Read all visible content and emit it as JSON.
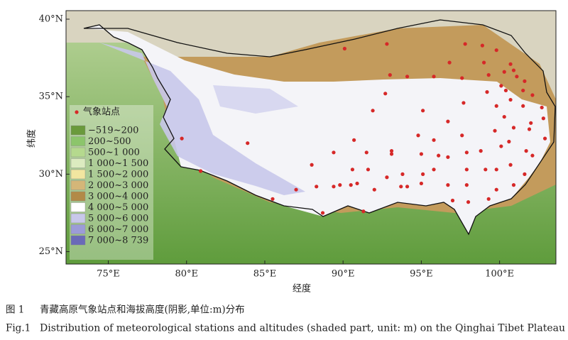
{
  "map": {
    "xlim": [
      72.3,
      103.6
    ],
    "ylim": [
      24.2,
      40.55
    ],
    "xticks": [
      {
        "value": 75,
        "label": "75°E"
      },
      {
        "value": 80,
        "label": "80°E"
      },
      {
        "value": 85,
        "label": "85°E"
      },
      {
        "value": 90,
        "label": "90°E"
      },
      {
        "value": 95,
        "label": "95°E"
      },
      {
        "value": 100,
        "label": "100°E"
      }
    ],
    "yticks": [
      {
        "value": 25,
        "label": "25°N"
      },
      {
        "value": 30,
        "label": "30°N"
      },
      {
        "value": 35,
        "label": "35°N"
      },
      {
        "value": 40,
        "label": "40°N"
      }
    ],
    "xlabel": "经度",
    "ylabel": "纬度",
    "legend": {
      "title": "气象站点",
      "marker_color": "#d62828",
      "items": [
        {
          "label": "−519~200",
          "color": "#6a9a3c"
        },
        {
          "label": "200~500",
          "color": "#8cc56b"
        },
        {
          "label": "500~1 000",
          "color": "#b5d98e"
        },
        {
          "label": "1 000~1 500",
          "color": "#dcebc0"
        },
        {
          "label": "1 500~2 000",
          "color": "#f2e6a0"
        },
        {
          "label": "2 000~3 000",
          "color": "#d4b678"
        },
        {
          "label": "3 000~4 000",
          "color": "#b28a48"
        },
        {
          "label": "4 000~5 000",
          "color": "#ffffff"
        },
        {
          "label": "5 000~6 000",
          "color": "#c8c8ea"
        },
        {
          "label": "6 000~7 000",
          "color": "#9c9cd8"
        },
        {
          "label": "7 000~8 739",
          "color": "#6a6ab8"
        }
      ]
    },
    "stations": {
      "lon": [
        92.8,
        90.1,
        97.8,
        98.9,
        99.8,
        96.8,
        99.0,
        100.7,
        93.0,
        94.1,
        95.8,
        97.6,
        99.3,
        100.3,
        100.9,
        101.1,
        101.6,
        100.1,
        100.4,
        99.2,
        101.5,
        102.1,
        92.7,
        91.9,
        95.1,
        97.7,
        99.8,
        100.7,
        101.5,
        102.7,
        100.3,
        102.0,
        96.7,
        95.8,
        97.6,
        99.7,
        100.9,
        102.9,
        94.8,
        90.7,
        93.1,
        93.1,
        95.0,
        96.1,
        96.7,
        97.9,
        98.8,
        100.1,
        100.6,
        101.7,
        102.1,
        79.7,
        83.9,
        89.4,
        91.5,
        88.0,
        90.6,
        91.6,
        92.8,
        93.8,
        95.1,
        95.8,
        97.9,
        99.1,
        99.8,
        100.7,
        101.6,
        87.0,
        88.3,
        89.4,
        89.8,
        90.5,
        90.9,
        92.0,
        93.7,
        95.0,
        96.7,
        97.9,
        99.8,
        100.9,
        88.7,
        97.0,
        98.0,
        99.3,
        80.9,
        85.5,
        91.3,
        94.1,
        101.9,
        102.8
      ],
      "lat": [
        38.4,
        38.1,
        38.4,
        38.3,
        38.0,
        37.2,
        37.2,
        37.1,
        36.4,
        36.3,
        36.3,
        36.2,
        36.4,
        36.6,
        36.7,
        36.3,
        36.0,
        35.7,
        35.4,
        35.3,
        35.4,
        35.1,
        35.2,
        34.1,
        34.1,
        34.6,
        34.4,
        34.8,
        34.4,
        34.3,
        33.7,
        33.3,
        33.4,
        32.2,
        32.5,
        32.8,
        33.0,
        32.3,
        32.5,
        32.2,
        31.5,
        31.3,
        31.3,
        31.2,
        31.1,
        31.4,
        31.5,
        31.8,
        32.1,
        31.5,
        31.2,
        32.3,
        32.0,
        31.4,
        31.4,
        30.6,
        30.3,
        30.3,
        29.8,
        30.0,
        30.0,
        30.3,
        30.3,
        30.3,
        30.3,
        30.6,
        30.0,
        29.0,
        29.2,
        29.2,
        29.3,
        29.3,
        29.4,
        29.0,
        29.2,
        29.4,
        29.3,
        29.3,
        29.0,
        29.3,
        27.5,
        28.3,
        28.2,
        28.4,
        30.2,
        28.4,
        27.6,
        29.2,
        32.9,
        33.6
      ]
    }
  },
  "caption": {
    "cn": {
      "label": "图 1",
      "text": "青藏高原气象站点和海拔高度(阴影,单位:m)分布"
    },
    "en": {
      "label": "Fig.1",
      "text": "Distribution of meteorological stations and altitudes (shaded part, unit: m) on the Qinghai Tibet Plateau"
    }
  }
}
